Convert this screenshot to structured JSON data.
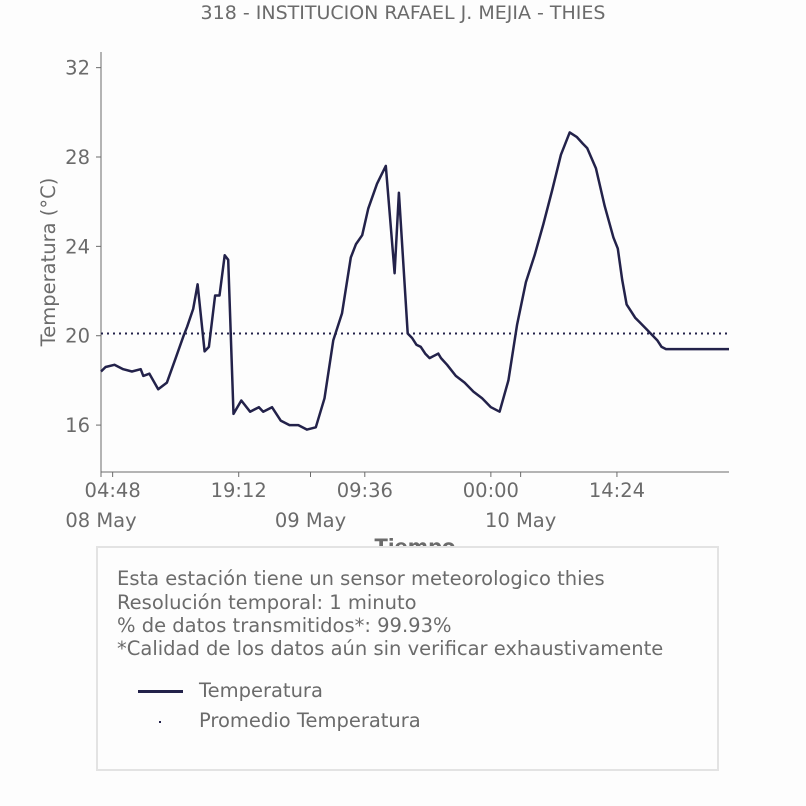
{
  "title": "318 - INSTITUCION RAFAEL J. MEJIA - THIES",
  "info": {
    "lines": [
      "Esta estación tiene un sensor meteorologico thies",
      "Resolución temporal: 1 minuto",
      "% de datos transmitidos*: 99.93%",
      "*Calidad de los datos aún sin verificar exhaustivamente"
    ]
  },
  "legend": {
    "series_label": "Temperatura",
    "mean_label": "Promedio Temperatura"
  },
  "colors": {
    "series": "#23224a",
    "text": "#6b6b6b",
    "axis": "#6b6b6b"
  },
  "chart_data": {
    "type": "line",
    "title": "318 - INSTITUCION RAFAEL J. MEJIA - THIES",
    "xlabel": "Tiempo",
    "ylabel": "Temperatura (°C)",
    "x_unit": "hours since 2023-05-08 00:00",
    "xlim": [
      3.47,
      75.2
    ],
    "ylim": [
      13.9,
      32.7
    ],
    "yticks": [
      16,
      20,
      24,
      28,
      32
    ],
    "xticks": [
      {
        "x": 4.8,
        "label": "04:48"
      },
      {
        "x": 19.2,
        "label": "19:12"
      },
      {
        "x": 33.6,
        "label": "09:36"
      },
      {
        "x": 48.0,
        "label": "00:00"
      },
      {
        "x": 62.4,
        "label": "14:24"
      }
    ],
    "date_labels": [
      {
        "x": 3.47,
        "label": "08 May"
      },
      {
        "x": 27.4,
        "label": "09 May"
      },
      {
        "x": 51.4,
        "label": "10 May"
      }
    ],
    "grid": false,
    "mean": 20.1,
    "series": [
      {
        "name": "Temperatura",
        "style": "solid",
        "x": [
          3.47,
          4.0,
          5.0,
          6.0,
          7.0,
          8.0,
          8.3,
          9.0,
          10.0,
          11.0,
          12.0,
          12.9,
          13.3,
          14.0,
          14.5,
          15.3,
          15.8,
          16.5,
          17.0,
          17.6,
          18.0,
          18.6,
          19.5,
          20.5,
          21.5,
          22.0,
          23.0,
          24.0,
          25.0,
          26.0,
          27.0,
          28.0,
          29.0,
          30.0,
          31.0,
          32.0,
          32.6,
          33.3,
          34.0,
          35.0,
          36.0,
          37.0,
          37.5,
          38.5,
          39.0,
          39.5,
          40.0,
          40.5,
          41.0,
          41.5,
          42.0,
          42.3,
          43.0,
          44.0,
          45.0,
          46.0,
          47.0,
          48.0,
          49.0,
          50.0,
          51.0,
          52.0,
          53.0,
          54.0,
          55.0,
          56.0,
          57.0,
          57.8,
          58.5,
          59.0,
          60.0,
          61.0,
          62.0,
          62.5,
          63.0,
          63.5,
          64.0,
          64.5,
          65.0,
          66.0,
          67.0,
          67.5,
          68.0,
          69.0,
          70.0,
          71.0,
          72.0,
          73.0,
          74.0,
          75.2
        ],
        "y": [
          18.4,
          18.6,
          18.7,
          18.5,
          18.4,
          18.5,
          18.2,
          18.3,
          17.6,
          17.9,
          19.0,
          20.0,
          20.4,
          21.2,
          22.3,
          19.3,
          19.5,
          21.8,
          21.8,
          23.6,
          23.4,
          16.5,
          17.1,
          16.6,
          16.8,
          16.6,
          16.8,
          16.2,
          16.0,
          16.0,
          15.8,
          15.9,
          17.2,
          19.8,
          21.0,
          23.5,
          24.1,
          24.5,
          25.7,
          26.8,
          27.6,
          22.8,
          26.4,
          20.1,
          19.9,
          19.6,
          19.5,
          19.2,
          19.0,
          19.1,
          19.2,
          19.0,
          18.7,
          18.2,
          17.9,
          17.5,
          17.2,
          16.8,
          16.6,
          18.0,
          20.5,
          22.4,
          23.6,
          25.0,
          26.5,
          28.1,
          29.1,
          28.9,
          28.6,
          28.4,
          27.5,
          25.8,
          24.4,
          23.9,
          22.5,
          21.4,
          21.1,
          20.8,
          20.6,
          20.2,
          19.8,
          19.5,
          19.4,
          19.4,
          19.4,
          19.4,
          19.4,
          19.4,
          19.4,
          19.4
        ]
      }
    ]
  }
}
